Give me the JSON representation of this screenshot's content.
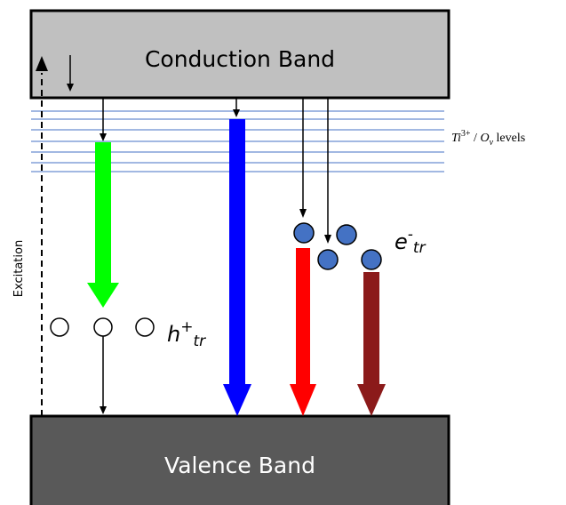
{
  "bands": {
    "conduction": {
      "label": "Conduction Band",
      "fill": "#c0c0c0"
    },
    "valence": {
      "label": "Valence Band",
      "fill": "#595959"
    }
  },
  "defect_levels": {
    "label_base": "Ti",
    "label_sup": "3+",
    "label_sep": " / ",
    "label_o": "O",
    "label_sub": "v",
    "label_tail": " levels",
    "line_color": "#4472c4"
  },
  "excitation": {
    "label": "Excitation"
  },
  "holes": {
    "label_base": "h",
    "label_sup": "+",
    "label_sub": "tr"
  },
  "electrons": {
    "label_base": "e",
    "label_sup": "-",
    "label_sub": "tr",
    "fill": "#4472c4"
  },
  "emissions": {
    "green": "#00ff00",
    "blue": "#0000ff",
    "red": "#ff0000",
    "dark_red": "#8b1a1a"
  }
}
